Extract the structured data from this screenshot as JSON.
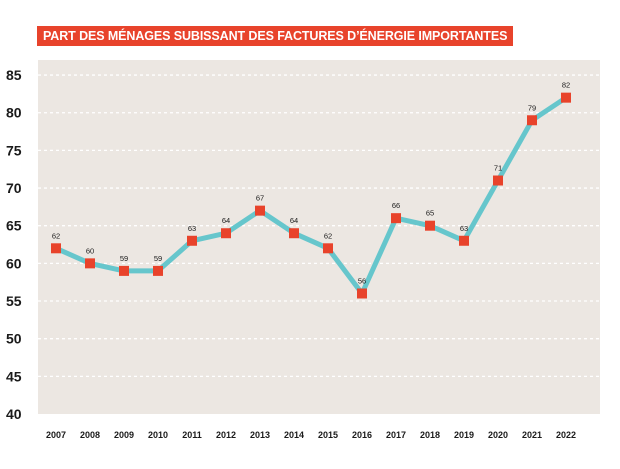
{
  "chart_data": {
    "type": "line",
    "title": "PART DES MÉNAGES SUBISSANT DES FACTURES D’ÉNERGIE IMPORTANTES",
    "xlabel": "",
    "ylabel": "",
    "categories": [
      "2007",
      "2008",
      "2009",
      "2010",
      "2011",
      "2012",
      "2013",
      "2014",
      "2015",
      "2016",
      "2017",
      "2018",
      "2019",
      "2020",
      "2021",
      "2022"
    ],
    "series": [
      {
        "values": [
          62,
          60,
          59,
          59,
          63,
          64,
          67,
          64,
          62,
          56,
          66,
          65,
          63,
          71,
          79,
          82
        ]
      }
    ],
    "ylim": [
      40,
      87
    ],
    "yticks": [
      "40",
      "45",
      "50",
      "55",
      "60",
      "65",
      "70",
      "75",
      "80",
      "85"
    ],
    "grid": "horizontal dashed",
    "data_labels": true,
    "colors": {
      "title_background": "#e8432b",
      "title_text": "#ffffff",
      "plot_background": "#ece7e2",
      "line": "#66c6cc",
      "marker": "#e8432b",
      "gridline": "#ffffff"
    }
  }
}
